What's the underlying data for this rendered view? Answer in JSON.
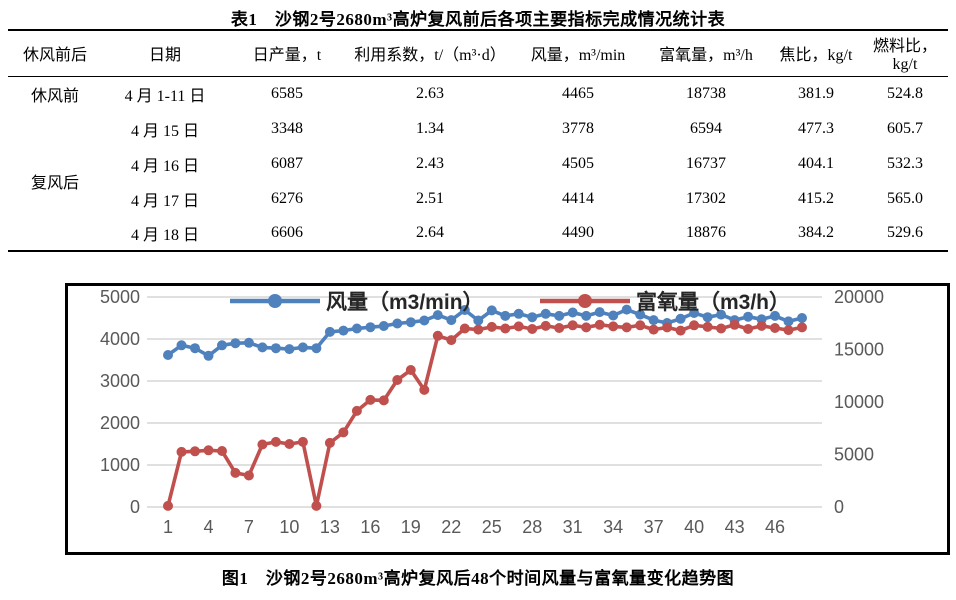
{
  "table": {
    "title": "表1　沙钢2号2680m³高炉复风前后各项主要指标完成情况统计表",
    "headers": [
      "休风前后",
      "日期",
      "日产量，t",
      "利用系数，t/（m³·d）",
      "风量，m³/min",
      "富氧量，m³/h",
      "焦比，kg/t",
      "燃料比，kg/t"
    ],
    "groups": [
      {
        "label": "休风前",
        "rows": [
          {
            "date": "4 月 1-11 日",
            "daily_output": "6585",
            "utilization": "2.63",
            "wind": "4465",
            "oxygen": "18738",
            "coke_ratio": "381.9",
            "fuel_ratio": "524.8"
          }
        ]
      },
      {
        "label": "复风后",
        "rows": [
          {
            "date": "4 月 15 日",
            "daily_output": "3348",
            "utilization": "1.34",
            "wind": "3778",
            "oxygen": "6594",
            "coke_ratio": "477.3",
            "fuel_ratio": "605.7"
          },
          {
            "date": "4 月 16 日",
            "daily_output": "6087",
            "utilization": "2.43",
            "wind": "4505",
            "oxygen": "16737",
            "coke_ratio": "404.1",
            "fuel_ratio": "532.3"
          },
          {
            "date": "4 月 17 日",
            "daily_output": "6276",
            "utilization": "2.51",
            "wind": "4414",
            "oxygen": "17302",
            "coke_ratio": "415.2",
            "fuel_ratio": "565.0"
          },
          {
            "date": "4 月 18 日",
            "daily_output": "6606",
            "utilization": "2.64",
            "wind": "4490",
            "oxygen": "18876",
            "coke_ratio": "384.2",
            "fuel_ratio": "529.6"
          }
        ]
      }
    ]
  },
  "figure": {
    "caption": "图1　沙钢2号2680m³高炉复风后48个时间风量与富氧量变化趋势图"
  },
  "chart_data": {
    "type": "line",
    "title": "",
    "x_label": "",
    "x": [
      1,
      2,
      3,
      4,
      5,
      6,
      7,
      8,
      9,
      10,
      11,
      12,
      13,
      14,
      15,
      16,
      17,
      18,
      19,
      20,
      21,
      22,
      23,
      24,
      25,
      26,
      27,
      28,
      29,
      30,
      31,
      32,
      33,
      34,
      35,
      36,
      37,
      38,
      39,
      40,
      41,
      42,
      43,
      44,
      45,
      46,
      47,
      48
    ],
    "x_tick_labels": [
      "1",
      "4",
      "7",
      "10",
      "13",
      "16",
      "19",
      "22",
      "25",
      "28",
      "31",
      "34",
      "37",
      "40",
      "43",
      "46"
    ],
    "x_ticks": [
      1,
      4,
      7,
      10,
      13,
      16,
      19,
      22,
      25,
      28,
      31,
      34,
      37,
      40,
      43,
      46
    ],
    "grid": true,
    "legend_position": "top",
    "left_axis": {
      "min": 0,
      "max": 5000,
      "ticks": [
        0,
        1000,
        2000,
        3000,
        4000,
        5000
      ],
      "tick_labels": [
        "0",
        "1000",
        "2000",
        "3000",
        "4000",
        "5000"
      ]
    },
    "right_axis": {
      "min": 0,
      "max": 20000,
      "ticks": [
        0,
        5000,
        10000,
        15000,
        20000
      ],
      "tick_labels": [
        "0",
        "5000",
        "10000",
        "15000",
        "20000"
      ]
    },
    "series": [
      {
        "name": "风量（m3/min）",
        "axis": "left",
        "color": "#4F81BD",
        "values": [
          3620,
          3850,
          3780,
          3600,
          3850,
          3900,
          3910,
          3800,
          3780,
          3760,
          3800,
          3780,
          4170,
          4200,
          4250,
          4280,
          4310,
          4370,
          4400,
          4440,
          4570,
          4450,
          4690,
          4440,
          4680,
          4550,
          4600,
          4520,
          4600,
          4550,
          4630,
          4550,
          4640,
          4560,
          4700,
          4580,
          4450,
          4380,
          4480,
          4620,
          4520,
          4580,
          4450,
          4530,
          4470,
          4550,
          4420,
          4500
        ]
      },
      {
        "name": "富氧量（m3/h）",
        "axis": "right",
        "color": "#C0504D",
        "values": [
          100,
          5250,
          5300,
          5400,
          5330,
          3250,
          3000,
          5950,
          6200,
          6000,
          6200,
          100,
          6100,
          7100,
          9150,
          10200,
          10150,
          12100,
          13050,
          11150,
          16300,
          15900,
          17000,
          16900,
          17150,
          17000,
          17200,
          16950,
          17250,
          17050,
          17300,
          17100,
          17350,
          17200,
          17100,
          17300,
          16900,
          17100,
          16800,
          17300,
          17150,
          17000,
          17350,
          16950,
          17250,
          17050,
          16850,
          17100
        ]
      }
    ],
    "colors": {
      "gridline": "#D6D6D6",
      "axis_text": "#595959",
      "legend_text": "#262626"
    }
  }
}
